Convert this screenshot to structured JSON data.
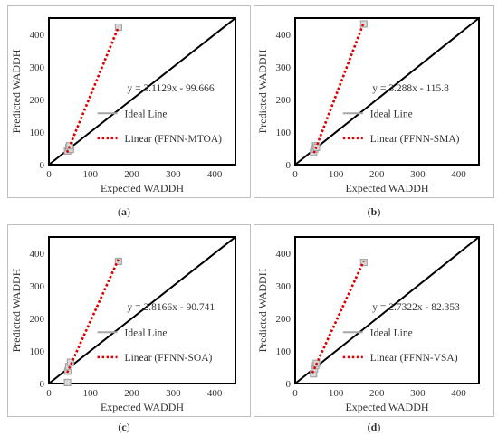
{
  "colors": {
    "frame": "#000000",
    "ideal": "#000000",
    "trend": "#e00000",
    "marker_fill": "#d9d9d9",
    "marker_stroke": "#a6a6a6",
    "legend_line": "#a6a6a6"
  },
  "chart_data": [
    {
      "type": "scatter",
      "panel": "(a)",
      "xlabel": "Expected WADDH",
      "ylabel": "Predicted WADDH",
      "xlim": [
        0,
        450
      ],
      "ylim": [
        0,
        450
      ],
      "xticks": [
        "0",
        "100",
        "200",
        "300",
        "400"
      ],
      "yticks": [
        "0",
        "100",
        "200",
        "300",
        "400"
      ],
      "points": [
        [
          45,
          42
        ],
        [
          48,
          52
        ],
        [
          52,
          47
        ],
        [
          50,
          58
        ],
        [
          168,
          422
        ]
      ],
      "ideal_line": [
        [
          0,
          0
        ],
        [
          450,
          450
        ]
      ],
      "trend": {
        "label": "Linear (FFNN-MTOA)",
        "slope": 3.1129,
        "intercept": -99.666,
        "x_range": [
          44,
          168
        ]
      },
      "equation": "y = 3.1129x - 99.666",
      "legend": [
        "Ideal Line",
        "Linear (FFNN-MTOA)"
      ]
    },
    {
      "type": "scatter",
      "panel": "(b)",
      "xlabel": "Expected WADDH",
      "ylabel": "Predicted WADDH",
      "xlim": [
        0,
        450
      ],
      "ylim": [
        0,
        450
      ],
      "xticks": [
        "0",
        "100",
        "200",
        "300",
        "400"
      ],
      "yticks": [
        "0",
        "100",
        "200",
        "300",
        "400"
      ],
      "points": [
        [
          45,
          38
        ],
        [
          48,
          48
        ],
        [
          50,
          58
        ],
        [
          52,
          53
        ],
        [
          168,
          432
        ]
      ],
      "ideal_line": [
        [
          0,
          0
        ],
        [
          450,
          450
        ]
      ],
      "trend": {
        "label": "Linear (FFNN-SMA)",
        "slope": 3.288,
        "intercept": -115.8,
        "x_range": [
          46,
          168
        ]
      },
      "equation": "y = 3.288x - 115.8",
      "legend": [
        "Ideal Line",
        "Linear (FFNN-SMA)"
      ]
    },
    {
      "type": "scatter",
      "panel": "(c)",
      "xlabel": "Expected WADDH",
      "ylabel": "Predicted WADDH",
      "xlim": [
        0,
        450
      ],
      "ylim": [
        0,
        450
      ],
      "xticks": [
        "0",
        "100",
        "200",
        "300",
        "400"
      ],
      "yticks": [
        "0",
        "100",
        "200",
        "300",
        "400"
      ],
      "points": [
        [
          45,
          3
        ],
        [
          46,
          38
        ],
        [
          48,
          52
        ],
        [
          52,
          65
        ],
        [
          168,
          375
        ]
      ],
      "ideal_line": [
        [
          0,
          0
        ],
        [
          450,
          450
        ]
      ],
      "trend": {
        "label": "Linear (FFNN-SOA)",
        "slope": 2.8166,
        "intercept": -90.741,
        "x_range": [
          44,
          168
        ]
      },
      "equation": "y = 2.8166x - 90.741",
      "legend": [
        "Ideal Line",
        "Linear (FFNN-SOA)"
      ]
    },
    {
      "type": "scatter",
      "panel": "(d)",
      "xlabel": "Expected WADDH",
      "ylabel": "Predicted WADDH",
      "xlim": [
        0,
        450
      ],
      "ylim": [
        0,
        450
      ],
      "xticks": [
        "0",
        "100",
        "200",
        "300",
        "400"
      ],
      "yticks": [
        "0",
        "100",
        "200",
        "300",
        "400"
      ],
      "points": [
        [
          45,
          30
        ],
        [
          47,
          45
        ],
        [
          50,
          55
        ],
        [
          52,
          62
        ],
        [
          168,
          372
        ]
      ],
      "ideal_line": [
        [
          0,
          0
        ],
        [
          450,
          450
        ]
      ],
      "trend": {
        "label": "Linear (FFNN-VSA)",
        "slope": 2.7322,
        "intercept": -82.353,
        "x_range": [
          42,
          168
        ]
      },
      "equation": "y = 2.7322x - 82.353",
      "legend": [
        "Ideal Line",
        "Linear (FFNN-VSA)"
      ]
    }
  ]
}
